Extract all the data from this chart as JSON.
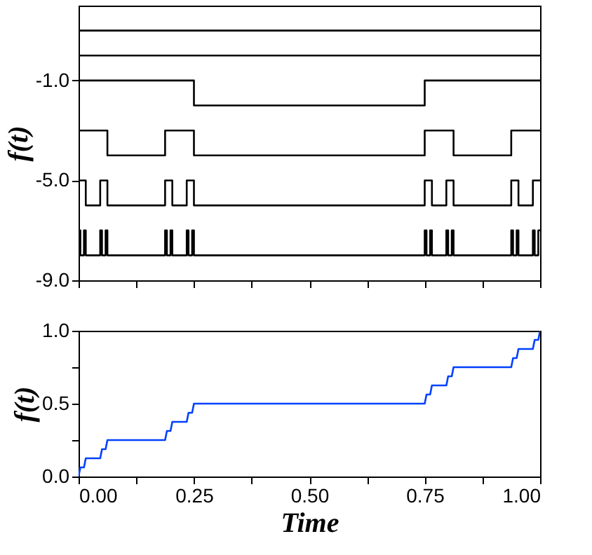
{
  "chart_data": [
    {
      "type": "step",
      "ylabel": "f(t)",
      "xlim": [
        0,
        1
      ],
      "ylim": [
        -9,
        2
      ],
      "grid": false,
      "tick_labels": "y",
      "xticks": [
        {
          "value": 0,
          "label": null
        },
        {
          "value": 0.125,
          "label": null
        },
        {
          "value": 0.25,
          "label": null
        },
        {
          "value": 0.375,
          "label": null
        },
        {
          "value": 0.5,
          "label": null
        },
        {
          "value": 0.625,
          "label": null
        },
        {
          "value": 0.75,
          "label": null
        },
        {
          "value": 0.875,
          "label": null
        },
        {
          "value": 1,
          "label": null
        }
      ],
      "yticks": [
        {
          "value": -1,
          "label": "-1.0"
        },
        {
          "value": -5,
          "label": "-5.0"
        },
        {
          "value": -9,
          "label": "-9.0"
        }
      ],
      "series": [
        {
          "color": "#000000",
          "x": [
            0,
            1
          ],
          "values": [
            1,
            1
          ]
        },
        {
          "color": "#000000",
          "x": [
            0,
            1
          ],
          "values": [
            0,
            0
          ]
        },
        {
          "color": "#000000",
          "x": [
            0,
            0.25,
            0.75,
            1
          ],
          "values": [
            -1,
            -2,
            -1,
            -1
          ]
        },
        {
          "color": "#000000",
          "x": [
            0,
            0.0625,
            0.1875,
            0.25,
            0.75,
            0.8125,
            0.9375,
            1
          ],
          "values": [
            -3,
            -4,
            -3,
            -4,
            -3,
            -4,
            -3,
            -3
          ]
        },
        {
          "color": "#000000",
          "x": [
            0,
            0.015625,
            0.046875,
            0.0625,
            0.1875,
            0.203125,
            0.234375,
            0.25,
            0.75,
            0.765625,
            0.796875,
            0.8125,
            0.9375,
            0.953125,
            0.984375,
            1
          ],
          "values": [
            -5,
            -6,
            -5,
            -6,
            -5,
            -6,
            -5,
            -6,
            -5,
            -6,
            -5,
            -6,
            -5,
            -6,
            -5,
            -5
          ]
        },
        {
          "color": "#000000",
          "x": [
            0,
            0.00390625,
            0.01171875,
            0.015625,
            0.046875,
            0.05078125,
            0.05859375,
            0.0625,
            0.1875,
            0.19140625,
            0.19921875,
            0.203125,
            0.234375,
            0.23828125,
            0.24609375,
            0.25,
            0.75,
            0.75390625,
            0.76171875,
            0.765625,
            0.796875,
            0.80078125,
            0.80859375,
            0.8125,
            0.9375,
            0.94140625,
            0.94921875,
            0.953125,
            0.984375,
            0.98828125,
            0.99609375,
            1
          ],
          "values": [
            -7,
            -8,
            -7,
            -8,
            -7,
            -8,
            -7,
            -8,
            -7,
            -8,
            -7,
            -8,
            -7,
            -8,
            -7,
            -8,
            -7,
            -8,
            -7,
            -8,
            -7,
            -8,
            -7,
            -8,
            -7,
            -8,
            -7,
            -8,
            -7,
            -8,
            -7,
            -7
          ]
        }
      ]
    },
    {
      "type": "line",
      "xlabel": "Time",
      "ylabel": "f(t)",
      "xlim": [
        0,
        1
      ],
      "ylim": [
        0,
        1
      ],
      "grid": false,
      "xticks": [
        {
          "value": 0,
          "label": "0.00"
        },
        {
          "value": 0.125,
          "label": null
        },
        {
          "value": 0.25,
          "label": "0.25"
        },
        {
          "value": 0.375,
          "label": null
        },
        {
          "value": 0.5,
          "label": "0.50"
        },
        {
          "value": 0.625,
          "label": null
        },
        {
          "value": 0.75,
          "label": "0.75"
        },
        {
          "value": 0.875,
          "label": null
        },
        {
          "value": 1,
          "label": "1.00"
        }
      ],
      "yticks": [
        {
          "value": 0,
          "label": "0.0"
        },
        {
          "value": 0.25,
          "label": null
        },
        {
          "value": 0.5,
          "label": "0.5"
        },
        {
          "value": 0.75,
          "label": null
        },
        {
          "value": 1,
          "label": "1.0"
        }
      ],
      "series": [
        {
          "color": "#0040ff",
          "x": [
            0,
            0.00390625,
            0.01171875,
            0.015625,
            0.046875,
            0.05078125,
            0.05859375,
            0.0625,
            0.1875,
            0.19140625,
            0.19921875,
            0.203125,
            0.234375,
            0.23828125,
            0.24609375,
            0.25,
            0.75,
            0.75390625,
            0.76171875,
            0.765625,
            0.796875,
            0.80078125,
            0.80859375,
            0.8125,
            0.9375,
            0.94140625,
            0.94921875,
            0.953125,
            0.984375,
            0.98828125,
            0.99609375,
            1
          ],
          "values": [
            0,
            0.0625,
            0.0625,
            0.125,
            0.125,
            0.1875,
            0.1875,
            0.25,
            0.25,
            0.3125,
            0.3125,
            0.375,
            0.375,
            0.4375,
            0.4375,
            0.5,
            0.5,
            0.5625,
            0.5625,
            0.625,
            0.625,
            0.6875,
            0.6875,
            0.75,
            0.75,
            0.8125,
            0.8125,
            0.875,
            0.875,
            0.9375,
            0.9375,
            1
          ]
        }
      ]
    }
  ]
}
